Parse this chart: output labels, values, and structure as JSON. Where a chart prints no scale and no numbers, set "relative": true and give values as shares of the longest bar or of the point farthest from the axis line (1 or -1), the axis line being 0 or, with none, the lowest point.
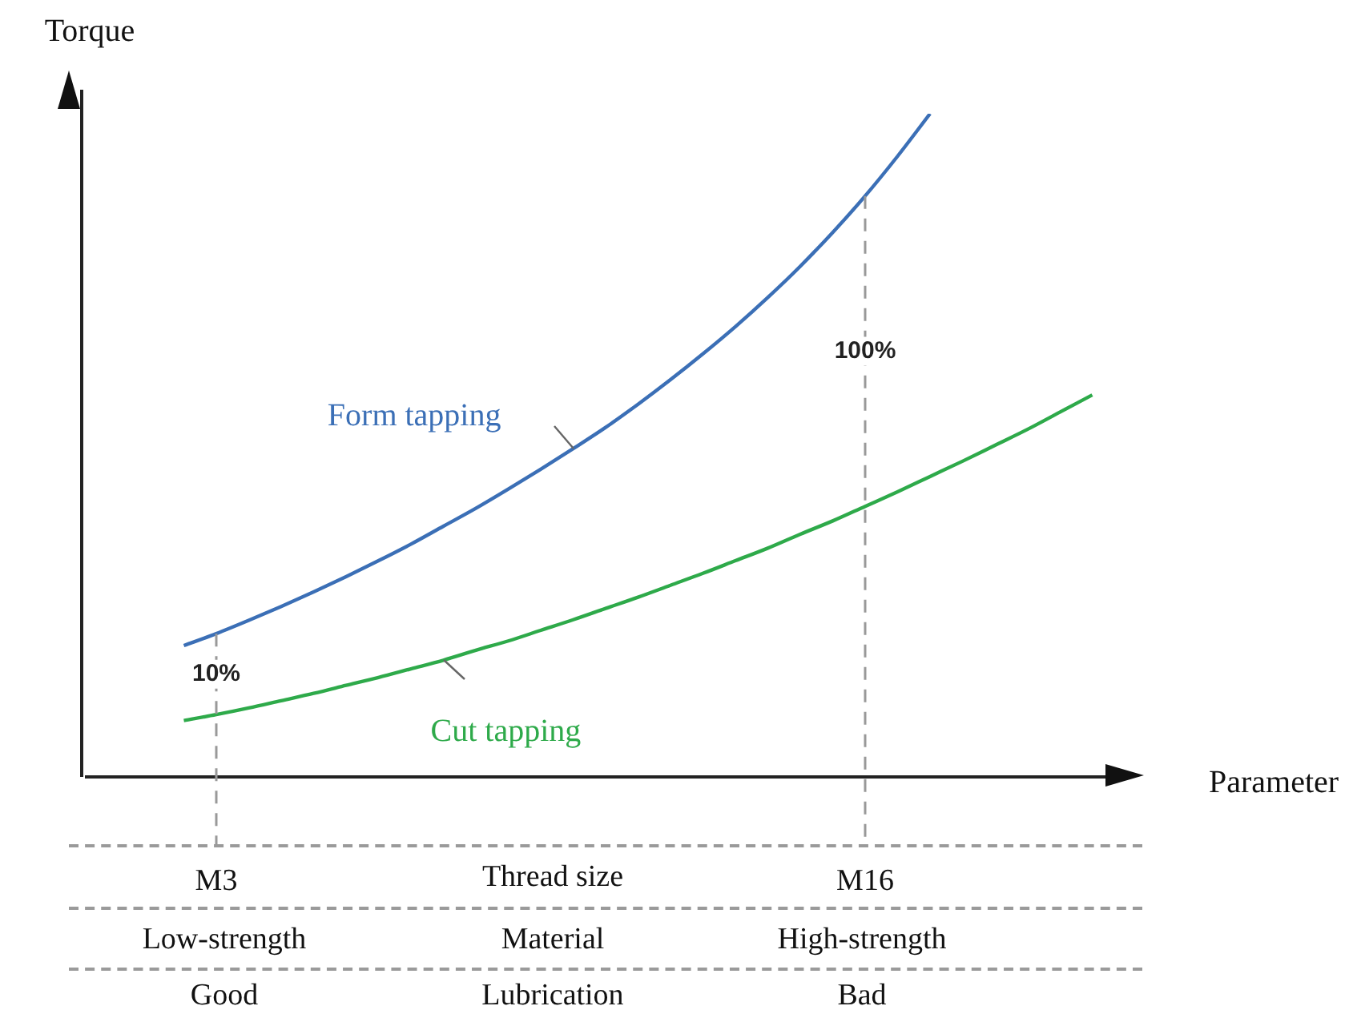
{
  "chart_data": {
    "type": "line",
    "relative": true,
    "legend": false,
    "grid": false,
    "marker": "none",
    "line_style": "solid",
    "xlabel": "Parameter",
    "ylabel": "Torque",
    "categories": [
      null,
      null,
      null,
      null,
      "M3",
      null,
      null,
      null,
      null,
      null,
      null,
      null,
      null,
      null,
      null,
      null,
      null,
      null,
      null,
      null,
      null,
      null,
      null,
      null,
      "M16",
      null,
      null,
      null,
      null,
      null,
      null,
      null,
      null
    ],
    "series": [
      {
        "name": "Form tapping",
        "color": "#3b6fb6",
        "values": [
          null,
          null,
          null,
          0.198,
          0.216,
          0.236,
          0.257,
          0.279,
          0.302,
          0.326,
          0.351,
          0.378,
          0.405,
          0.434,
          0.464,
          0.495,
          0.527,
          0.562,
          0.599,
          0.638,
          0.679,
          0.723,
          0.77,
          0.821,
          0.876,
          0.936,
          1,
          null,
          null,
          null,
          null,
          null,
          null
        ]
      },
      {
        "name": "Cut tapping",
        "color": "#2eaa4a",
        "values": [
          null,
          null,
          null,
          0.085,
          0.094,
          0.104,
          0.115,
          0.126,
          0.138,
          0.15,
          0.163,
          0.176,
          0.191,
          0.205,
          0.221,
          0.237,
          0.254,
          0.271,
          0.289,
          0.307,
          0.326,
          0.345,
          0.366,
          0.386,
          0.408,
          0.43,
          0.453,
          0.476,
          0.5,
          0.524,
          0.55,
          0.576,
          null
        ]
      }
    ],
    "ref_lines": [
      {
        "axis": "x",
        "value": "M3",
        "label": "10%",
        "color": "#999999",
        "line_style": "dashed"
      },
      {
        "axis": "x",
        "value": "M16",
        "label": "100%",
        "color": "#999999",
        "line_style": "dashed"
      }
    ],
    "annotations": [
      "Thread size",
      "Low-strength",
      "Material",
      "High-strength",
      "Good",
      "Lubrication",
      "Bad"
    ]
  }
}
